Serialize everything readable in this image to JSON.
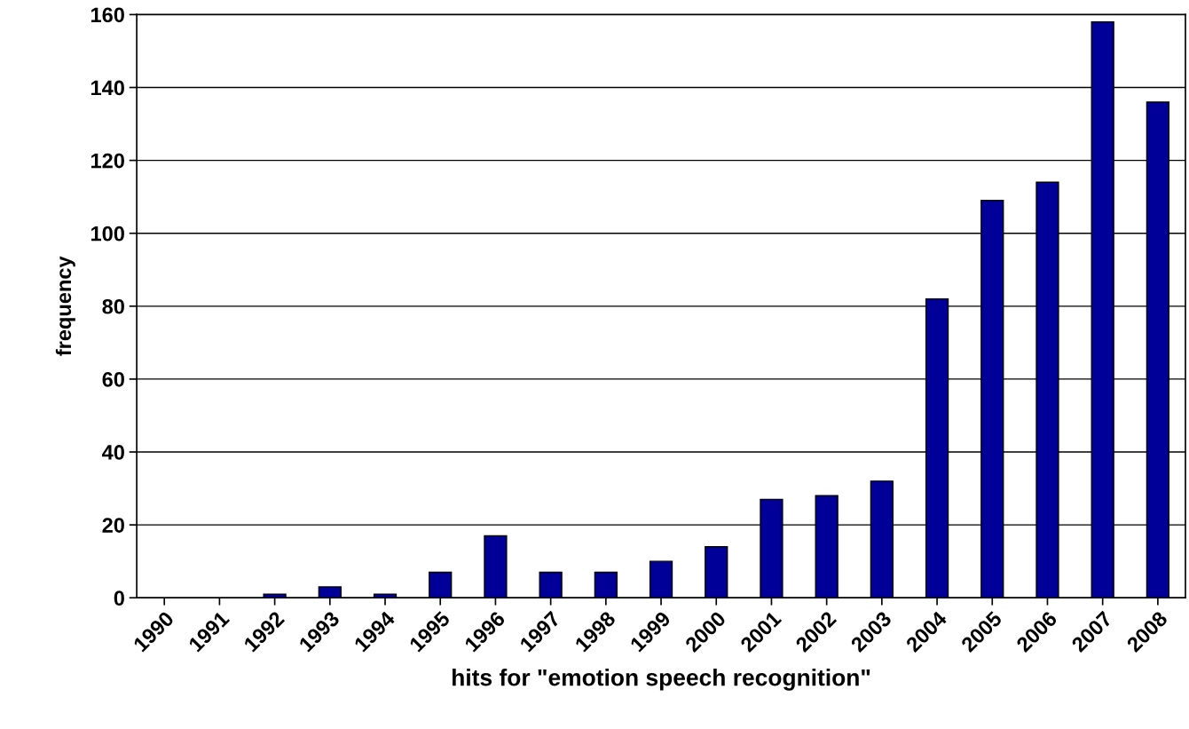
{
  "chart_data": {
    "type": "bar",
    "xlabel": "hits for \"emotion speech recognition\"",
    "ylabel": "frequency",
    "categories": [
      "1990",
      "1991",
      "1992",
      "1993",
      "1994",
      "1995",
      "1996",
      "1997",
      "1998",
      "1999",
      "2000",
      "2001",
      "2002",
      "2003",
      "2004",
      "2005",
      "2006",
      "2007",
      "2008"
    ],
    "values": [
      0,
      0,
      1,
      3,
      1,
      7,
      17,
      7,
      7,
      10,
      14,
      27,
      28,
      32,
      82,
      109,
      114,
      158,
      136
    ],
    "color": "#000099",
    "ylim": [
      0,
      160
    ],
    "yticks": [
      0,
      20,
      40,
      60,
      80,
      100,
      120,
      140,
      160
    ],
    "grid": "y"
  }
}
